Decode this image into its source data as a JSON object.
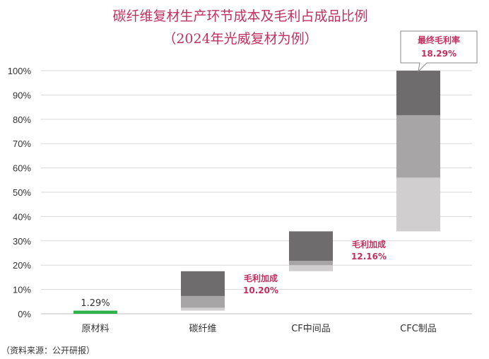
{
  "chart_data": {
    "type": "bar",
    "title": "碳纤维复材生产环节成本及毛利占成品比例",
    "subtitle": "（2024年光威复材为例）",
    "categories": [
      "原材料",
      "碳纤维",
      "CF中间品",
      "CFC制品"
    ],
    "ylim": [
      0,
      100
    ],
    "yticks": [
      "0%",
      "10%",
      "20%",
      "30%",
      "40%",
      "50%",
      "60%",
      "70%",
      "80%",
      "90%",
      "100%"
    ],
    "grid": true,
    "bars": [
      {
        "category": "原材料",
        "segments": [
          {
            "start": 0,
            "end": 1.29,
            "color": "#2db34a"
          }
        ]
      },
      {
        "category": "碳纤维",
        "segments": [
          {
            "start": 1.3,
            "end": 2.5,
            "color": "#d0cecf"
          },
          {
            "start": 2.5,
            "end": 7.3,
            "color": "#a7a5a6"
          },
          {
            "start": 7.3,
            "end": 17.5,
            "color": "#6e6c6d"
          }
        ]
      },
      {
        "category": "CF中间品",
        "segments": [
          {
            "start": 17.5,
            "end": 20.0,
            "color": "#d0cecf"
          },
          {
            "start": 20.0,
            "end": 21.8,
            "color": "#a7a5a6"
          },
          {
            "start": 21.8,
            "end": 33.9,
            "color": "#6e6c6d"
          }
        ]
      },
      {
        "category": "CFC制品",
        "segments": [
          {
            "start": 33.9,
            "end": 56.0,
            "color": "#d0cecf"
          },
          {
            "start": 56.0,
            "end": 81.7,
            "color": "#a7a5a6"
          },
          {
            "start": 81.7,
            "end": 100,
            "color": "#6e6c6d"
          }
        ]
      }
    ],
    "labels": {
      "raw_material_value": "1.29%",
      "margin_note_1_title": "毛利加成",
      "margin_note_1_value": "10.20%",
      "margin_note_2_title": "毛利加成",
      "margin_note_2_value": "12.16%",
      "final_margin_title": "最终毛利率",
      "final_margin_value": "18.29%"
    }
  },
  "footer": {
    "source": "（资料来源：公开研报）"
  },
  "colors": {
    "accent": "#c0305f",
    "grid": "#d9d9d9",
    "raw": "#2db34a"
  }
}
